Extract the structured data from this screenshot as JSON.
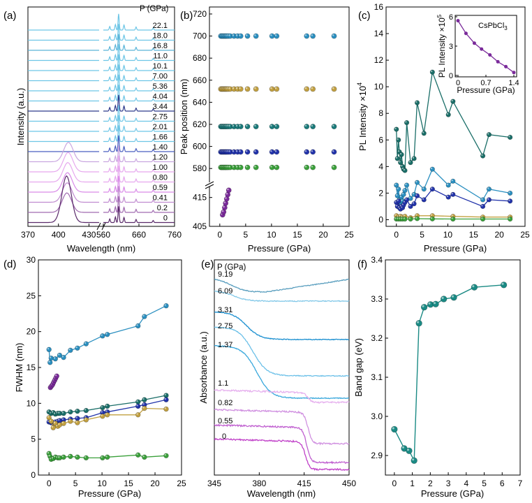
{
  "figure": "multi-panel",
  "chart_data": [
    {
      "id": "a",
      "label": "(a)",
      "type": "line",
      "xlabel": "Wavelength (nm)",
      "ylabel": "Intensity (a.u.)",
      "xticks_left": [
        "370",
        "400",
        "430"
      ],
      "xticks_right": [
        "560",
        "660",
        "760"
      ],
      "legend_title": "P (GPa)",
      "pressures": [
        "22.1",
        "18.0",
        "16.8",
        "11.0",
        "10.1",
        "7.00",
        "5.36",
        "4.04",
        "3.44",
        "2.75",
        "2.01",
        "1.66",
        "1.40",
        "1.20",
        "1.00",
        "0.80",
        "0.59",
        "0.41",
        "0.2",
        "0"
      ],
      "colors": [
        "#6ec6e6",
        "#6ec6e6",
        "#5ab4d8",
        "#6ec6e6",
        "#6ec6e6",
        "#6ec6e6",
        "#6ec6e6",
        "#6ec6e6",
        "#2e3a8c",
        "#6ec6e6",
        "#6ec6e6",
        "#6ec6e6",
        "#4a5fc0",
        "#c9a6e0",
        "#e6a8ee",
        "#e6a8ee",
        "#d98be8",
        "#c08bd0",
        "#a06ab0",
        "#5a2a6a"
      ],
      "peak_wavelength_nm": 408,
      "violet_peak_pressures": [
        "1.20",
        "1.00",
        "0.80",
        "0.59",
        "0.41",
        "0.2",
        "0"
      ]
    },
    {
      "id": "b",
      "label": "(b)",
      "type": "scatter",
      "xlabel": "Pressure (GPa)",
      "ylabel": "Peak position (nm)",
      "xlim": [
        -2,
        25
      ],
      "xticks": [
        "0",
        "5",
        "10",
        "15",
        "20",
        "25"
      ],
      "yticks_top": [
        "580",
        "600",
        "620",
        "640",
        "660",
        "680",
        "700",
        "720"
      ],
      "yticks_bottom": [
        "405",
        "415"
      ],
      "x": [
        0.2,
        0.41,
        0.59,
        0.8,
        1.0,
        1.2,
        1.4,
        1.66,
        2.01,
        2.75,
        3.44,
        4.04,
        5.36,
        7.0,
        10.1,
        11.0,
        16.8,
        18.0,
        22.1
      ],
      "series": [
        {
          "color": "#2a8fc0",
          "value": 700
        },
        {
          "color": "#c2a040",
          "value": 652
        },
        {
          "color": "#1a7a7a",
          "value": 618
        },
        {
          "color": "#2233aa",
          "value": 595
        },
        {
          "color": "#3aa03a",
          "value": 581
        }
      ],
      "violet": {
        "color": "#7a2a9a",
        "x": [
          0.0,
          0.2,
          0.41,
          0.59,
          0.8,
          1.0,
          1.2
        ],
        "y": [
          409,
          410,
          411.5,
          413,
          414.5,
          416,
          417.5
        ]
      }
    },
    {
      "id": "c",
      "label": "(c)",
      "type": "line",
      "xlabel": "Pressure (GPa)",
      "ylabel": "PL Intensity ×10",
      "ylabel_exp": "4",
      "xlim": [
        -2,
        25
      ],
      "ylim": [
        -0.5,
        16
      ],
      "xticks": [
        "0",
        "5",
        "10",
        "15",
        "20",
        "25"
      ],
      "yticks": [
        "0",
        "2",
        "4",
        "6",
        "8",
        "10",
        "12",
        "14",
        "16"
      ],
      "series": [
        {
          "color": "#1a6e68",
          "x": [
            0,
            0.2,
            0.41,
            0.59,
            0.8,
            1.0,
            1.2,
            1.4,
            1.66,
            2.01,
            2.75,
            3.44,
            4.04,
            5.36,
            7.0,
            10.1,
            11.0,
            16.8,
            18.0,
            22.1
          ],
          "y": [
            6.8,
            4.6,
            6.0,
            5.1,
            4.3,
            4.9,
            4.0,
            3.8,
            3.7,
            7.3,
            4.3,
            4.6,
            8.8,
            6.5,
            11.1,
            7.9,
            8.9,
            4.8,
            6.4,
            6.2
          ]
        },
        {
          "color": "#2a8fc0",
          "x": [
            0,
            0.2,
            0.41,
            0.59,
            0.8,
            1.0,
            1.2,
            1.4,
            1.66,
            2.01,
            2.75,
            3.44,
            4.04,
            5.36,
            7.0,
            10.1,
            11.0,
            16.8,
            18.0,
            22.1
          ],
          "y": [
            2.6,
            1.8,
            2.3,
            1.5,
            1.3,
            1.7,
            1.4,
            1.9,
            2.2,
            2.6,
            1.6,
            1.9,
            2.8,
            2.3,
            3.8,
            2.6,
            2.9,
            1.5,
            2.3,
            2.0
          ]
        },
        {
          "color": "#2233aa",
          "x": [
            0,
            0.2,
            0.41,
            0.59,
            0.8,
            1.0,
            1.2,
            1.4,
            1.66,
            2.01,
            2.75,
            3.44,
            4.04,
            5.36,
            7.0,
            10.1,
            11.0,
            16.8,
            18.0,
            22.1
          ],
          "y": [
            1.3,
            1.0,
            1.4,
            0.9,
            0.8,
            1.0,
            0.9,
            1.1,
            1.3,
            1.5,
            1.0,
            1.2,
            1.8,
            1.5,
            2.3,
            1.7,
            1.9,
            1.0,
            1.5,
            1.4
          ]
        },
        {
          "color": "#c2a040",
          "x": [
            0,
            0.41,
            0.8,
            1.2,
            1.66,
            2.75,
            4.04,
            7.0,
            11.0,
            16.8,
            22.1
          ],
          "y": [
            0.3,
            0.2,
            0.25,
            0.2,
            0.25,
            0.15,
            0.3,
            0.3,
            0.25,
            0.2,
            0.2
          ]
        },
        {
          "color": "#3aa03a",
          "x": [
            0,
            0.41,
            0.8,
            1.2,
            1.66,
            2.75,
            4.04,
            7.0,
            11.0,
            16.8,
            22.1
          ],
          "y": [
            0.05,
            0.05,
            0.05,
            0.05,
            0.05,
            0.05,
            0.08,
            0.06,
            0.05,
            0.05,
            0.05
          ]
        }
      ],
      "inset": {
        "title": "CsPbCl",
        "title_sub": "3",
        "xlabel": "Pressure (GPa)",
        "ylabel": "PL Intensity ×10",
        "ylabel_exp": "5",
        "xticks": [
          "0",
          "0.7",
          "1.4"
        ],
        "yticks": [
          "0",
          "3",
          "6"
        ],
        "color": "#7a2a9a",
        "x": [
          0,
          0.2,
          0.41,
          0.59,
          0.8,
          1.0,
          1.2,
          1.4
        ],
        "y": [
          5.6,
          4.3,
          3.3,
          2.7,
          2.1,
          1.4,
          0.9,
          0.3
        ]
      }
    },
    {
      "id": "d",
      "label": "(d)",
      "type": "line",
      "xlabel": "Pressure (GPa)",
      "ylabel": "FWHM (nm)",
      "xlim": [
        -2,
        25
      ],
      "ylim": [
        0,
        30
      ],
      "xticks": [
        "0",
        "5",
        "10",
        "15",
        "20",
        "25"
      ],
      "yticks": [
        "0",
        "5",
        "10",
        "15",
        "20",
        "25",
        "30"
      ],
      "series": [
        {
          "color": "#2a8fc0",
          "x": [
            0,
            0.2,
            0.41,
            1.2,
            2.01,
            2.75,
            4.04,
            5.36,
            7.0,
            10.1,
            11.0,
            16.8,
            18.0,
            22.1
          ],
          "y": [
            17.5,
            15.7,
            16.3,
            16.2,
            16.7,
            16.4,
            17.4,
            17.7,
            18.3,
            19.4,
            19.6,
            20.8,
            22.1,
            23.6
          ]
        },
        {
          "color": "#1a6e68",
          "x": [
            0,
            0.41,
            0.8,
            1.2,
            1.66,
            2.01,
            2.75,
            4.04,
            5.36,
            7.0,
            10.1,
            11.0,
            16.8,
            18.0,
            22.1
          ],
          "y": [
            8.8,
            8.6,
            8.7,
            8.5,
            8.6,
            8.6,
            8.6,
            8.8,
            8.9,
            9.0,
            9.4,
            9.6,
            10.2,
            10.5,
            11.1
          ]
        },
        {
          "color": "#2233aa",
          "x": [
            0,
            0.41,
            0.8,
            1.2,
            1.66,
            2.01,
            2.75,
            4.04,
            5.36,
            7.0,
            10.1,
            11.0,
            16.8,
            18.0,
            22.1
          ],
          "y": [
            7.4,
            7.3,
            7.3,
            7.4,
            7.5,
            7.6,
            7.7,
            7.8,
            7.9,
            8.0,
            8.7,
            8.8,
            9.6,
            9.8,
            10.5
          ]
        },
        {
          "color": "#c2a040",
          "x": [
            0,
            0.41,
            0.8,
            1.2,
            1.66,
            2.01,
            2.75,
            4.04,
            5.36,
            7.0,
            10.1,
            11.0,
            16.8,
            18.0,
            22.1
          ],
          "y": [
            8.0,
            7.5,
            6.6,
            7.2,
            6.8,
            7.0,
            7.2,
            7.5,
            7.3,
            7.7,
            8.2,
            8.4,
            8.4,
            9.3,
            9.2
          ]
        },
        {
          "color": "#3aa03a",
          "x": [
            0,
            0.2,
            0.41,
            0.8,
            1.2,
            1.66,
            2.01,
            2.75,
            4.04,
            5.36,
            7.0,
            10.1,
            11.0,
            16.8,
            18.0,
            22.1
          ],
          "y": [
            3.0,
            2.6,
            2.2,
            2.3,
            2.5,
            2.4,
            2.4,
            2.5,
            2.6,
            2.5,
            2.4,
            2.4,
            2.5,
            2.8,
            2.5,
            2.7
          ]
        }
      ],
      "violet": {
        "color": "#7a2a9a",
        "x": [
          0.0,
          0.2,
          0.41,
          0.59,
          0.8,
          1.0,
          1.2
        ],
        "y": [
          12.2,
          12.4,
          12.6,
          12.9,
          13.2,
          13.5,
          13.8
        ]
      }
    },
    {
      "id": "e",
      "label": "(e)",
      "type": "line",
      "xlabel": "Wavelength (nm)",
      "ylabel": "Absorbance (a.u.)",
      "xlim": [
        345,
        450
      ],
      "xticks": [
        "345",
        "380",
        "415",
        "450"
      ],
      "legend_title": "P (GPa)",
      "pressures": [
        "9.19",
        "6.09",
        "3.31",
        "2.75",
        "1.37",
        "1.1",
        "0.82",
        "0.55",
        "0"
      ],
      "colors": [
        "#5b9fbf",
        "#82c8e8",
        "#1a8fd0",
        "#6cc0e8",
        "#3aa8dc",
        "#e6b0ee",
        "#d090e0",
        "#c060d0",
        "#c040c8"
      ]
    },
    {
      "id": "f",
      "label": "(f)",
      "type": "line",
      "xlabel": "Pressure (GPa)",
      "ylabel": "Band gap (eV)",
      "xlim": [
        -0.5,
        7
      ],
      "ylim": [
        2.85,
        3.4
      ],
      "xticks": [
        "0",
        "1",
        "2",
        "3",
        "4",
        "5",
        "6",
        "7"
      ],
      "yticks": [
        "2.9",
        "3.0",
        "3.1",
        "3.2",
        "3.3",
        "3.4"
      ],
      "series": [
        {
          "color": "#1a8a84",
          "x": [
            0,
            0.55,
            0.82,
            1.1,
            1.37,
            1.66,
            2.01,
            2.3,
            2.75,
            3.31,
            4.45,
            6.09
          ],
          "y": [
            2.967,
            2.918,
            2.912,
            2.887,
            3.238,
            3.279,
            3.286,
            3.287,
            3.3,
            3.304,
            3.33,
            3.336
          ]
        }
      ]
    }
  ]
}
